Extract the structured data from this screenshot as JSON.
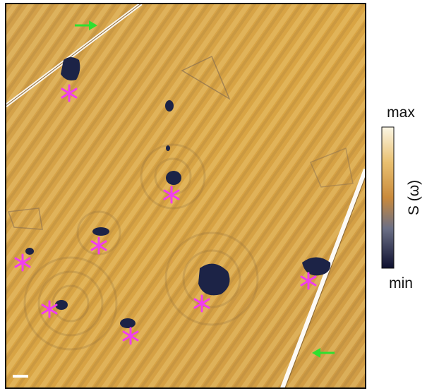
{
  "colorbar": {
    "max_label": "max",
    "min_label": "min",
    "label": "S (ω)"
  }
}
